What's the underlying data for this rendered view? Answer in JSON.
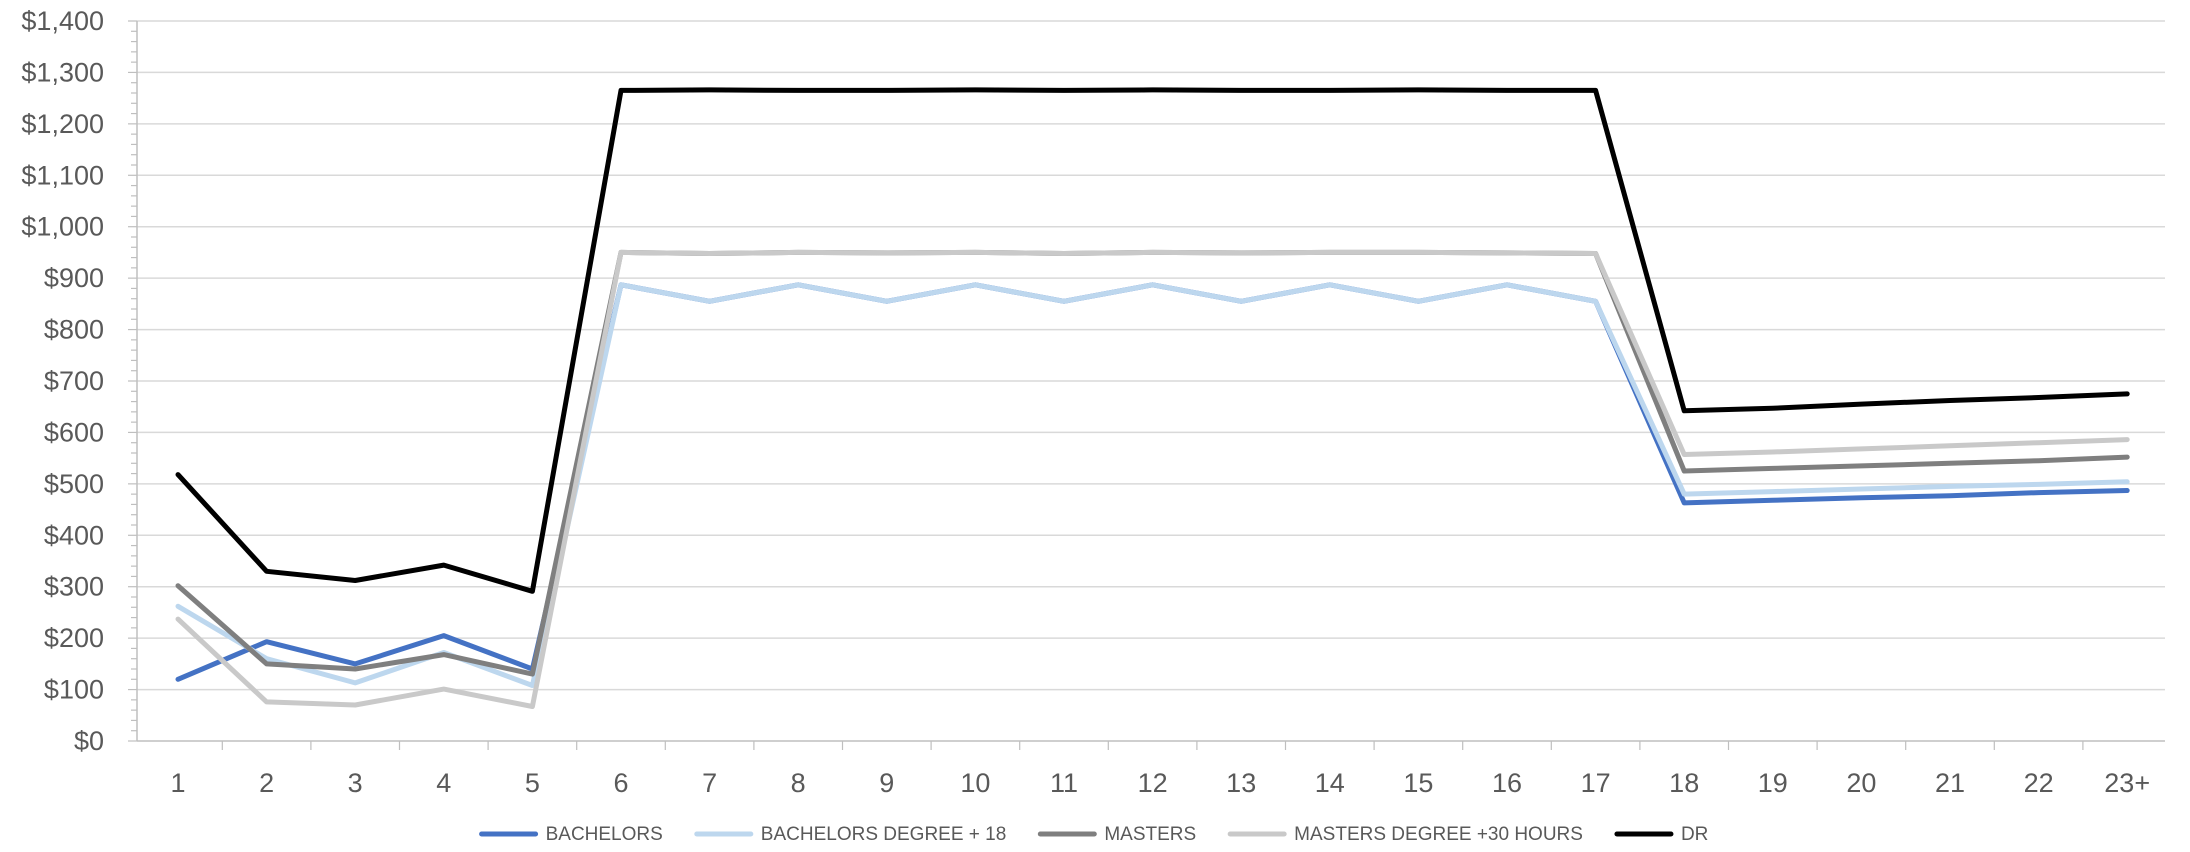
{
  "chart_data": {
    "type": "line",
    "title": "",
    "xlabel": "",
    "ylabel": "",
    "categories": [
      "1",
      "2",
      "3",
      "4",
      "5",
      "6",
      "7",
      "8",
      "9",
      "10",
      "11",
      "12",
      "13",
      "14",
      "15",
      "16",
      "17",
      "18",
      "19",
      "20",
      "21",
      "22",
      "23+"
    ],
    "ylim": [
      0,
      1400
    ],
    "yticks": [
      0,
      100,
      200,
      300,
      400,
      500,
      600,
      700,
      800,
      900,
      1000,
      1100,
      1200,
      1300,
      1400
    ],
    "ytick_labels": [
      "$0",
      "$100",
      "$200",
      "$300",
      "$400",
      "$500",
      "$600",
      "$700",
      "$800",
      "$900",
      "$1,000",
      "$1,100",
      "$1,200",
      "$1,300",
      "$1,400"
    ],
    "grid": true,
    "legend_position": "bottom",
    "series": [
      {
        "name": "BACHELORS",
        "color": "#4472C4",
        "values": [
          120,
          193,
          150,
          205,
          140,
          887,
          855,
          887,
          855,
          887,
          855,
          887,
          855,
          887,
          855,
          887,
          855,
          463,
          468,
          473,
          477,
          483,
          487
        ]
      },
      {
        "name": "BACHELORS DEGREE + 18",
        "color": "#BDD7EE",
        "values": [
          262,
          160,
          113,
          172,
          108,
          887,
          855,
          887,
          855,
          887,
          855,
          887,
          855,
          887,
          855,
          887,
          855,
          480,
          485,
          490,
          495,
          499,
          504
        ]
      },
      {
        "name": "MASTERS",
        "color": "#7F7F7F",
        "values": [
          302,
          150,
          140,
          168,
          130,
          950,
          948,
          950,
          949,
          950,
          948,
          950,
          949,
          950,
          950,
          949,
          948,
          525,
          530,
          535,
          540,
          545,
          552
        ]
      },
      {
        "name": "MASTERS DEGREE +30 HOURS",
        "color": "#C9C9C9",
        "values": [
          237,
          76,
          70,
          101,
          67,
          950,
          948,
          950,
          949,
          950,
          948,
          950,
          949,
          950,
          950,
          949,
          948,
          557,
          562,
          568,
          574,
          580,
          586
        ]
      },
      {
        "name": "DR",
        "color": "#000000",
        "values": [
          518,
          330,
          312,
          342,
          291,
          1265,
          1266,
          1265,
          1265,
          1266,
          1265,
          1266,
          1265,
          1265,
          1266,
          1265,
          1265,
          642,
          647,
          655,
          662,
          668,
          675
        ]
      }
    ]
  }
}
